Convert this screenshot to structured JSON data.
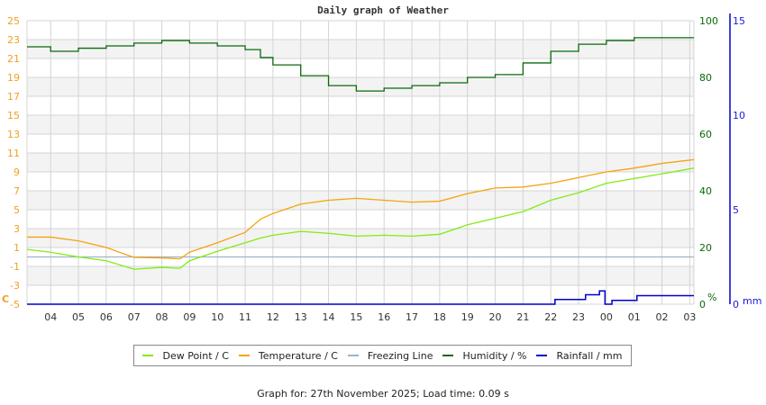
{
  "header": {
    "title": "Daily graph of Weather"
  },
  "footer": {
    "text": "Graph for: 27th November 2025; Load time: 0.09 s"
  },
  "colors": {
    "temperature": "#f5a30f",
    "dew_point": "#80ec14",
    "freezing": "#9fb4c8",
    "humidity": "#0a6a0a",
    "rainfall": "#0000cc",
    "grid": "#d4d4d4",
    "band": "#f3f3f3",
    "left_axis_text": "#f0a020",
    "humidity_axis_text": "#0a6a0a",
    "rain_axis_text": "#1a1add"
  },
  "legend": {
    "items": [
      {
        "label": "Dew Point / C",
        "color": "#80ec14"
      },
      {
        "label": "Temperature / C",
        "color": "#f5a30f"
      },
      {
        "label": "Freezing Line",
        "color": "#9fb4c8"
      },
      {
        "label": "Humidity / %",
        "color": "#0a6a0a"
      },
      {
        "label": "Rainfall / mm",
        "color": "#0000cc"
      }
    ]
  },
  "chart_data": {
    "type": "line",
    "title": "Daily graph of Weather",
    "xlabel": "",
    "x_tick_labels": [
      "04",
      "05",
      "06",
      "07",
      "08",
      "09",
      "10",
      "11",
      "12",
      "13",
      "14",
      "15",
      "16",
      "17",
      "18",
      "19",
      "20",
      "21",
      "22",
      "23",
      "00",
      "01",
      "02",
      "03"
    ],
    "x_range_hours": [
      3.15,
      27.15
    ],
    "axes": {
      "left": {
        "label": "C",
        "ylim": [
          -5,
          25
        ],
        "ticks": [
          -5,
          -3,
          -1,
          1,
          3,
          5,
          7,
          9,
          11,
          13,
          15,
          17,
          19,
          21,
          23,
          25
        ]
      },
      "right_humidity": {
        "label": "%",
        "ylim": [
          0,
          100
        ],
        "ticks": [
          0,
          20,
          40,
          60,
          80,
          100
        ]
      },
      "right_rain": {
        "label": "mm",
        "ylim": [
          0,
          15
        ],
        "ticks": [
          0,
          5,
          10,
          15
        ]
      }
    },
    "grid": true,
    "legend_position": "bottom",
    "x": [
      3.15,
      4.0,
      5.0,
      6.0,
      7.0,
      8.0,
      8.65,
      9.0,
      10.0,
      11.0,
      11.55,
      12.0,
      13.0,
      14.0,
      15.0,
      16.0,
      17.0,
      18.0,
      19.0,
      20.0,
      21.0,
      22.0,
      23.0,
      24.0,
      25.0,
      26.0,
      27.15
    ],
    "series": [
      {
        "name": "Temperature / C",
        "axis": "left",
        "values": [
          2.1,
          2.1,
          1.7,
          1.0,
          -0.05,
          -0.1,
          -0.2,
          0.5,
          1.5,
          2.6,
          4.0,
          4.6,
          5.6,
          6.0,
          6.2,
          6.0,
          5.8,
          5.9,
          6.7,
          7.3,
          7.4,
          7.8,
          8.4,
          9.0,
          9.4,
          9.9,
          10.3
        ]
      },
      {
        "name": "Dew Point / C",
        "axis": "left",
        "values": [
          0.8,
          0.5,
          0.0,
          -0.4,
          -1.3,
          -1.1,
          -1.2,
          -0.4,
          0.6,
          1.5,
          2.0,
          2.3,
          2.7,
          2.5,
          2.2,
          2.3,
          2.2,
          2.4,
          3.4,
          4.1,
          4.8,
          6.0,
          6.8,
          7.8,
          8.3,
          8.8,
          9.4
        ]
      },
      {
        "name": "Freezing Line",
        "axis": "left",
        "values": [
          0,
          0,
          0,
          0,
          0,
          0,
          0,
          0,
          0,
          0,
          0,
          0,
          0,
          0,
          0,
          0,
          0,
          0,
          0,
          0,
          0,
          0,
          0,
          0,
          0,
          0,
          0
        ]
      },
      {
        "name": "Humidity / %",
        "axis": "right_humidity",
        "values": [
          90.8,
          89.2,
          90.3,
          91.1,
          92.1,
          93.0,
          93.0,
          92.1,
          91.1,
          89.8,
          87.0,
          84.4,
          80.6,
          77.1,
          75.2,
          76.2,
          77.1,
          78.1,
          80.0,
          81.0,
          85.1,
          89.2,
          91.7,
          93.0,
          94.0,
          94.0,
          94.0
        ]
      },
      {
        "name": "Rainfall / mm",
        "axis": "right_rain",
        "values": [
          0,
          0,
          0,
          0,
          0,
          0,
          0,
          0,
          0,
          0,
          0,
          0,
          0,
          0,
          0,
          0,
          0,
          0,
          0,
          0,
          0,
          0.25,
          0.5,
          0.7,
          0.25,
          0.45,
          0.45
        ]
      }
    ],
    "rainfall_steps": [
      {
        "x": 3.15,
        "v": 0
      },
      {
        "x": 22.15,
        "v": 0.25
      },
      {
        "x": 23.25,
        "v": 0.5
      },
      {
        "x": 23.75,
        "v": 0.7
      },
      {
        "x": 23.95,
        "v": 0
      },
      {
        "x": 24.2,
        "v": 0.2
      },
      {
        "x": 25.1,
        "v": 0.45
      },
      {
        "x": 27.15,
        "v": 0.45
      }
    ]
  }
}
